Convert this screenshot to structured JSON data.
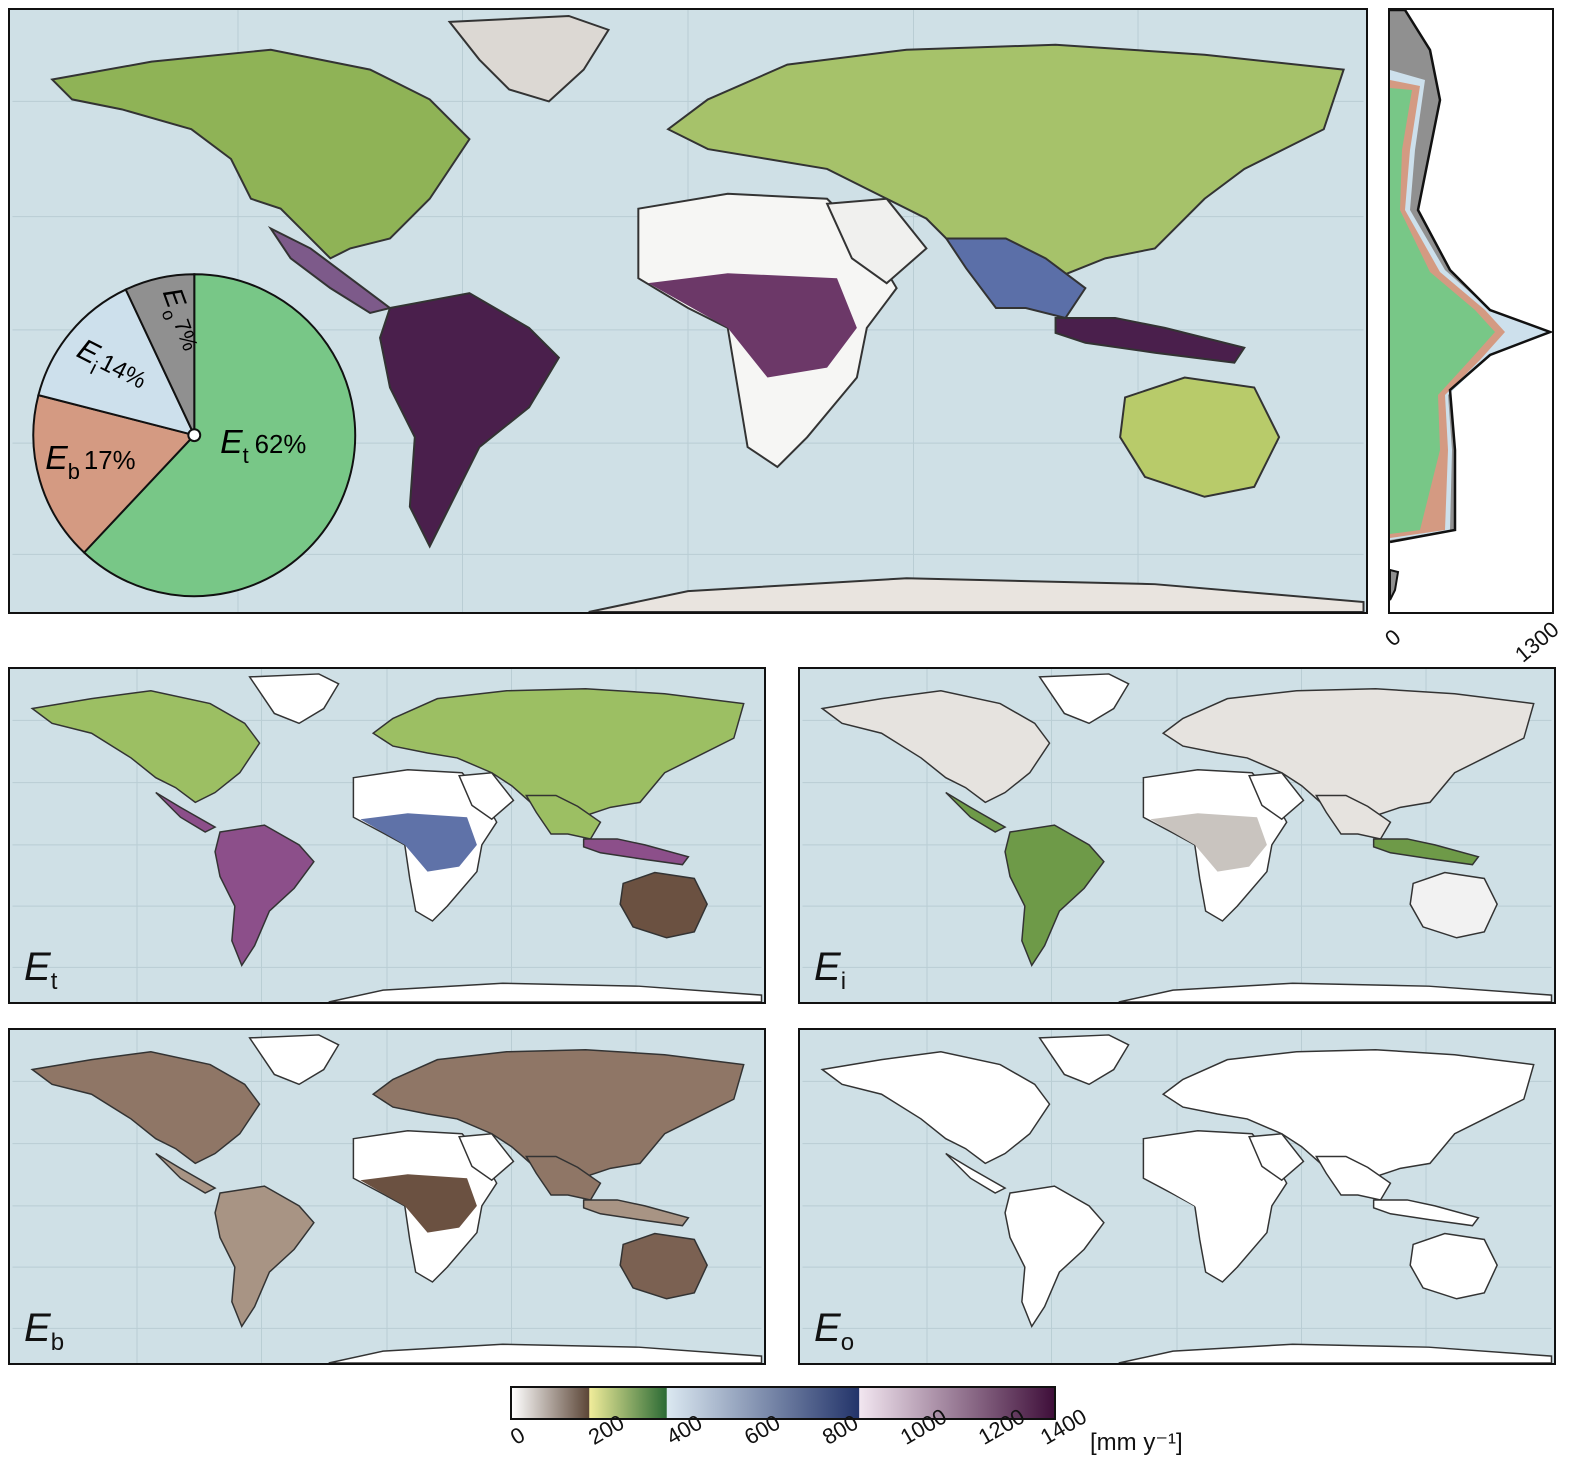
{
  "main_map": {
    "pie": {
      "slices": [
        {
          "sym": "E",
          "sub": "t",
          "pct": "62%",
          "value": 62,
          "color": "#78c787"
        },
        {
          "sym": "E",
          "sub": "b",
          "pct": "17%",
          "value": 17,
          "color": "#d49a82"
        },
        {
          "sym": "E",
          "sub": "i",
          "pct": "14%",
          "value": 14,
          "color": "#cde0ec"
        },
        {
          "sym": "E",
          "sub": "o",
          "pct": "7%",
          "value": 7,
          "color": "#909090"
        }
      ]
    }
  },
  "profile": {
    "tick_min": "0",
    "tick_max": "1300",
    "colors": {
      "Et": "#78c787",
      "Eb": "#d49a82",
      "Ei": "#cde0ec",
      "Eo": "#909090"
    }
  },
  "panels": [
    {
      "sym": "E",
      "sub": "t"
    },
    {
      "sym": "E",
      "sub": "i"
    },
    {
      "sym": "E",
      "sub": "b"
    },
    {
      "sym": "E",
      "sub": "o"
    }
  ],
  "colorbar": {
    "ticks": [
      "0",
      "200",
      "400",
      "600",
      "800",
      "1000",
      "1200",
      "1400"
    ],
    "unit": "[mm y⁻¹]",
    "colors": {
      "c0_200": [
        "#ffffff",
        "#5c4637"
      ],
      "c200_400": [
        "#f0ec9a",
        "#2c6b35"
      ],
      "c400_600": [
        "#dbe8f1",
        "#23346a"
      ],
      "c600_800": [
        "#f2e6f0",
        "#3f0f3a"
      ]
    }
  },
  "ocean_color": "#cfe0e6"
}
